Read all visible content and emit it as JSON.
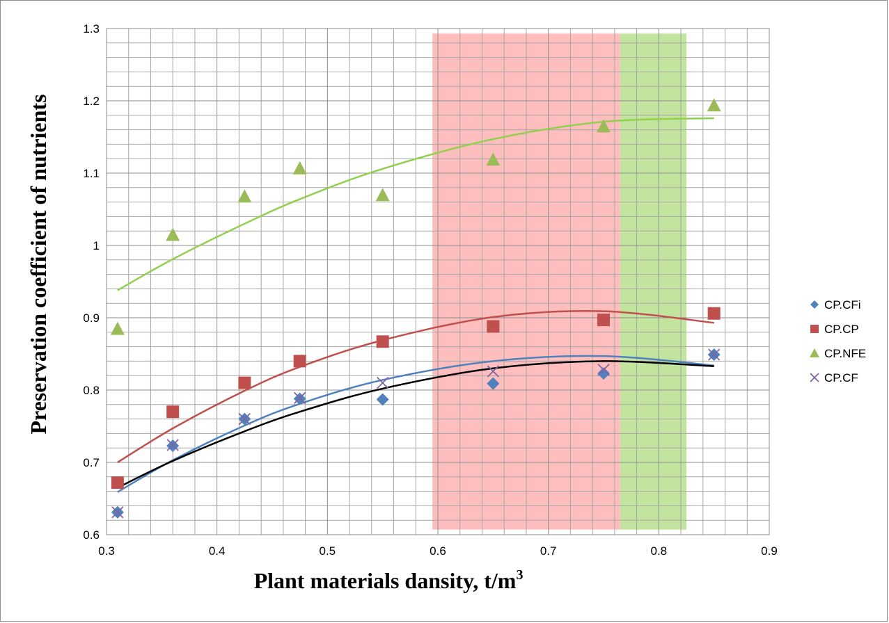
{
  "chart_data": {
    "type": "scatter",
    "title": "",
    "xlabel": "Plant materials dansity, t/m",
    "xlabel_superscript": "3",
    "ylabel": "Preservation coefficient of nutrients",
    "xlim": [
      0.3,
      0.9
    ],
    "ylim": [
      0.6,
      1.3
    ],
    "x_ticks": [
      "0.3",
      "0.4",
      "0.5",
      "0.6",
      "0.7",
      "0.8",
      "0.9"
    ],
    "y_ticks": [
      "0.6",
      "0.7",
      "0.8",
      "0.9",
      "1",
      "1.1",
      "1.2",
      "1.3"
    ],
    "grid": true,
    "legend_position": "right",
    "shaded_regions": [
      {
        "x": [
          0.595,
          0.765
        ],
        "y": [
          0.607,
          1.293
        ],
        "color": "#ffb3b3"
      },
      {
        "x": [
          0.765,
          0.825
        ],
        "y": [
          0.607,
          1.293
        ],
        "color": "#b9df8e"
      }
    ],
    "series": [
      {
        "name": "CP.CFi",
        "marker": "diamond",
        "color": "#4f81bd",
        "trend_color": "#4f81bd",
        "x": [
          0.31,
          0.36,
          0.425,
          0.475,
          0.55,
          0.65,
          0.75,
          0.85
        ],
        "y": [
          0.631,
          0.723,
          0.76,
          0.788,
          0.787,
          0.809,
          0.823,
          0.849
        ],
        "trend": [
          [
            0.31,
            0.659
          ],
          [
            0.36,
            0.703
          ],
          [
            0.425,
            0.751
          ],
          [
            0.475,
            0.781
          ],
          [
            0.55,
            0.814
          ],
          [
            0.65,
            0.84
          ],
          [
            0.75,
            0.847
          ],
          [
            0.85,
            0.834
          ]
        ]
      },
      {
        "name": "CP.CP",
        "marker": "square",
        "color": "#c0504d",
        "trend_color": "#c0504d",
        "x": [
          0.31,
          0.36,
          0.425,
          0.475,
          0.55,
          0.65,
          0.75,
          0.85
        ],
        "y": [
          0.672,
          0.77,
          0.81,
          0.84,
          0.867,
          0.888,
          0.897,
          0.906
        ],
        "trend": [
          [
            0.31,
            0.7
          ],
          [
            0.36,
            0.747
          ],
          [
            0.425,
            0.799
          ],
          [
            0.475,
            0.832
          ],
          [
            0.55,
            0.869
          ],
          [
            0.65,
            0.901
          ],
          [
            0.75,
            0.909
          ],
          [
            0.85,
            0.893
          ]
        ]
      },
      {
        "name": "CP.NFE",
        "marker": "triangle",
        "color": "#9bbb59",
        "trend_color": "#92d050",
        "x": [
          0.31,
          0.36,
          0.425,
          0.475,
          0.55,
          0.65,
          0.75,
          0.85
        ],
        "y": [
          0.885,
          1.015,
          1.068,
          1.107,
          1.07,
          1.119,
          1.165,
          1.194
        ],
        "trend": [
          [
            0.31,
            0.938
          ],
          [
            0.36,
            0.981
          ],
          [
            0.425,
            1.03
          ],
          [
            0.475,
            1.064
          ],
          [
            0.55,
            1.106
          ],
          [
            0.65,
            1.147
          ],
          [
            0.75,
            1.171
          ],
          [
            0.85,
            1.176
          ]
        ]
      },
      {
        "name": "CP.CF",
        "marker": "x",
        "color": "#8064a2",
        "trend_color": "#000000",
        "x": [
          0.31,
          0.36,
          0.425,
          0.475,
          0.55,
          0.65,
          0.75,
          0.85
        ],
        "y": [
          0.631,
          0.724,
          0.76,
          0.789,
          0.81,
          0.826,
          0.828,
          0.849
        ],
        "trend": [
          [
            0.31,
            0.665
          ],
          [
            0.36,
            0.702
          ],
          [
            0.425,
            0.743
          ],
          [
            0.475,
            0.77
          ],
          [
            0.55,
            0.802
          ],
          [
            0.65,
            0.83
          ],
          [
            0.75,
            0.84
          ],
          [
            0.85,
            0.833
          ]
        ]
      }
    ]
  }
}
